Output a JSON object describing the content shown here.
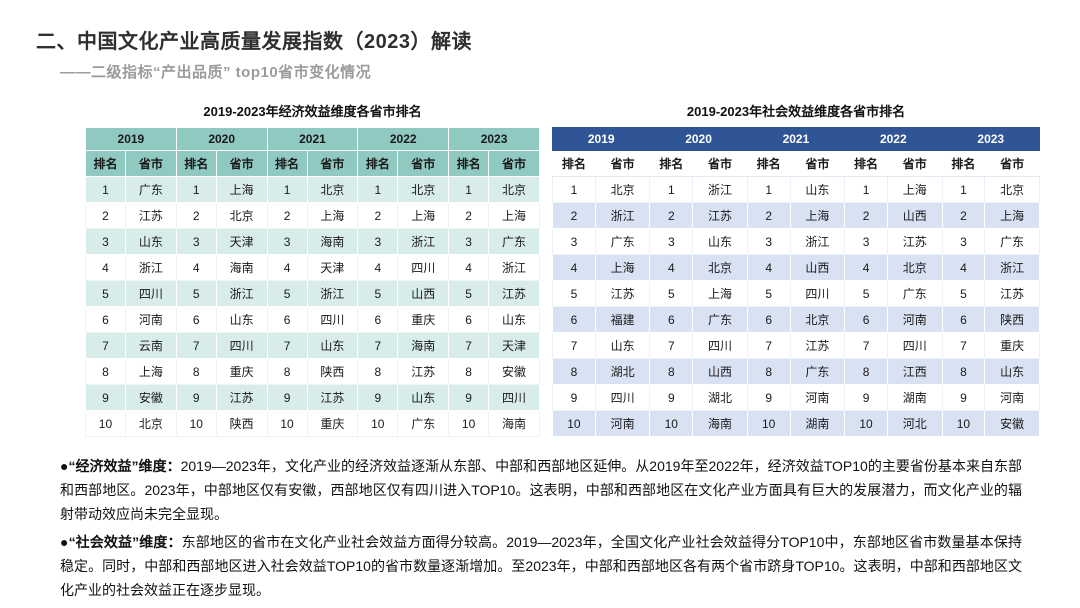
{
  "header": {
    "title": "二、中国文化产业高质量发展指数（2023）解读",
    "subtitle": "——二级指标“产出品质” top10省市变化情况"
  },
  "colors": {
    "title_text": "#2f2f2f",
    "subtitle_text": "#9b9b9b",
    "economic_header": "#8fc9c1",
    "economic_row_band": "#d8ece9",
    "social_header": "#2f5597",
    "social_row_band": "#d9e2f3"
  },
  "tables": {
    "economic": {
      "caption": "2019-2023年经济效益维度各省市排名",
      "subheaders": [
        "排名",
        "省市"
      ],
      "ranks": [
        "1",
        "2",
        "3",
        "4",
        "5",
        "6",
        "7",
        "8",
        "9",
        "10"
      ],
      "series": [
        {
          "year": "2019",
          "provinces": [
            "广东",
            "江苏",
            "山东",
            "浙江",
            "四川",
            "河南",
            "云南",
            "上海",
            "安徽",
            "北京"
          ]
        },
        {
          "year": "2020",
          "provinces": [
            "上海",
            "北京",
            "天津",
            "海南",
            "浙江",
            "山东",
            "四川",
            "重庆",
            "江苏",
            "陕西"
          ]
        },
        {
          "year": "2021",
          "provinces": [
            "北京",
            "上海",
            "海南",
            "天津",
            "浙江",
            "四川",
            "山东",
            "陕西",
            "江苏",
            "重庆"
          ]
        },
        {
          "year": "2022",
          "provinces": [
            "北京",
            "上海",
            "浙江",
            "四川",
            "山西",
            "重庆",
            "海南",
            "江苏",
            "山东",
            "广东"
          ]
        },
        {
          "year": "2023",
          "provinces": [
            "北京",
            "上海",
            "广东",
            "浙江",
            "江苏",
            "山东",
            "天津",
            "安徽",
            "四川",
            "海南"
          ]
        }
      ]
    },
    "social": {
      "caption": "2019-2023年社会效益维度各省市排名",
      "subheaders": [
        "排名",
        "省市"
      ],
      "ranks": [
        "1",
        "2",
        "3",
        "4",
        "5",
        "6",
        "7",
        "8",
        "9",
        "10"
      ],
      "series": [
        {
          "year": "2019",
          "provinces": [
            "北京",
            "浙江",
            "广东",
            "上海",
            "江苏",
            "福建",
            "山东",
            "湖北",
            "四川",
            "河南"
          ]
        },
        {
          "year": "2020",
          "provinces": [
            "浙江",
            "江苏",
            "山东",
            "北京",
            "上海",
            "广东",
            "四川",
            "山西",
            "湖北",
            "海南"
          ]
        },
        {
          "year": "2021",
          "provinces": [
            "山东",
            "上海",
            "浙江",
            "山西",
            "四川",
            "北京",
            "江苏",
            "广东",
            "河南",
            "湖南"
          ]
        },
        {
          "year": "2022",
          "provinces": [
            "上海",
            "山西",
            "江苏",
            "北京",
            "广东",
            "河南",
            "四川",
            "江西",
            "湖南",
            "河北"
          ]
        },
        {
          "year": "2023",
          "provinces": [
            "北京",
            "上海",
            "广东",
            "浙江",
            "江苏",
            "陕西",
            "重庆",
            "山东",
            "河南",
            "安徽"
          ]
        }
      ]
    }
  },
  "notes": {
    "economic": {
      "lead": "●“经济效益”维度：",
      "body": "2019—2023年，文化产业的经济效益逐渐从东部、中部和西部地区延伸。从2019年至2022年，经济效益TOP10的主要省份基本来自东部和西部地区。2023年，中部地区仅有安徽，西部地区仅有四川进入TOP10。这表明，中部和西部地区在文化产业方面具有巨大的发展潜力，而文化产业的辐射带动效应尚未完全显现。"
    },
    "social": {
      "lead": "●“社会效益”维度：",
      "body": "东部地区的省市在文化产业社会效益方面得分较高。2019—2023年，全国文化产业社会效益得分TOP10中，东部地区省市数量基本保持稳定。同时，中部和西部地区进入社会效益TOP10的省市数量逐渐增加。至2023年，中部和西部地区各有两个省市跻身TOP10。这表明，中部和西部地区文化产业的社会效益正在逐步显现。"
    }
  }
}
